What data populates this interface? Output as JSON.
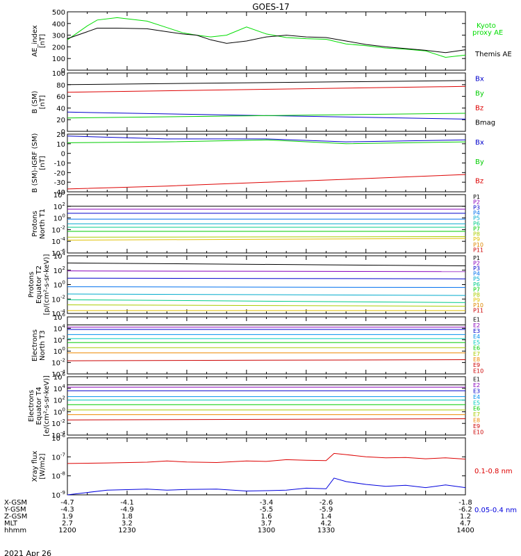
{
  "title": "GOES-17",
  "footer_date": "2021 Apr 26",
  "x_axis": {
    "tick_labels": [
      "1200",
      "1230",
      "1300",
      "1330",
      "1400"
    ],
    "rows": [
      {
        "label": "X-GSM",
        "values": [
          "-4.7",
          "-4.1",
          "-3.4",
          "-2.6",
          "-1.8"
        ]
      },
      {
        "label": "Y-GSM",
        "values": [
          "-4.3",
          "-4.9",
          "-5.5",
          "-5.9",
          "-6.2"
        ]
      },
      {
        "label": "Z-GSM",
        "values": [
          "1.9",
          "1.8",
          "1.6",
          "1.4",
          "1.2"
        ]
      },
      {
        "label": "MLT",
        "values": [
          "2.7",
          "3.2",
          "3.7",
          "4.2",
          "4.7"
        ]
      },
      {
        "label": "hhmm",
        "values": [
          "1200",
          "1230",
          "1300",
          "1330",
          "1400"
        ]
      }
    ]
  },
  "chart_data": [
    {
      "type": "line",
      "ylabel": [
        "AE_index",
        "[nT]"
      ],
      "yscale": "linear",
      "ylim": [
        0,
        500
      ],
      "ticks": [
        0,
        100,
        200,
        300,
        400,
        500
      ],
      "tick_labels": [
        "0",
        "100",
        "200",
        "300",
        "400",
        "500"
      ],
      "x": [
        1200,
        1210,
        1215,
        1225,
        1240,
        1250,
        1258,
        1265,
        1272,
        1280,
        1290,
        1300,
        1310,
        1320,
        1330,
        1340,
        1350,
        1360,
        1370,
        1380,
        1390,
        1400
      ],
      "series": [
        {
          "name": "Kyoto proxy AE",
          "color": "#00dd00",
          "values": [
            260,
            380,
            430,
            450,
            420,
            365,
            320,
            300,
            285,
            300,
            370,
            310,
            280,
            270,
            265,
            225,
            210,
            190,
            180,
            165,
            110,
            130
          ]
        },
        {
          "name": "Themis AE",
          "color": "#000000",
          "values": [
            270,
            330,
            360,
            360,
            355,
            330,
            310,
            300,
            260,
            230,
            250,
            285,
            300,
            285,
            280,
            250,
            220,
            200,
            185,
            170,
            150,
            175
          ]
        }
      ]
    },
    {
      "type": "line",
      "ylabel": [
        "B (SM)",
        "[nT]"
      ],
      "yscale": "linear",
      "ylim": [
        0,
        100
      ],
      "ticks": [
        0,
        20,
        40,
        60,
        80,
        100
      ],
      "tick_labels": [
        "0",
        "20",
        "40",
        "60",
        "80",
        "100"
      ],
      "x": [
        1200,
        1400
      ],
      "series": [
        {
          "name": "Bx",
          "color": "#0000cc",
          "values": [
            33,
            21
          ]
        },
        {
          "name": "By",
          "color": "#00cc00",
          "values": [
            23,
            31
          ]
        },
        {
          "name": "Bz",
          "color": "#dd0000",
          "values": [
            67,
            77
          ]
        },
        {
          "name": "Bmag",
          "color": "#000000",
          "values": [
            80,
            87
          ]
        }
      ]
    },
    {
      "type": "line",
      "ylabel": [
        "B (SM)-IGRF (SM)",
        "[nT]"
      ],
      "yscale": "linear",
      "ylim": [
        -40,
        20
      ],
      "ticks": [
        -40,
        -30,
        -20,
        -10,
        0,
        10,
        20
      ],
      "tick_labels": [
        "-40",
        "-30",
        "-20",
        "-10",
        "0",
        "10",
        "20"
      ],
      "x": [
        1200,
        1250,
        1300,
        1340,
        1400
      ],
      "series": [
        {
          "name": "Bx",
          "color": "#0000cc",
          "values": [
            18,
            15,
            15,
            12,
            14
          ]
        },
        {
          "name": "By",
          "color": "#00cc00",
          "values": [
            11,
            12,
            14,
            10,
            12
          ]
        },
        {
          "name": "Bz",
          "color": "#dd0000",
          "values": [
            -37,
            -34,
            -30,
            -27,
            -22
          ]
        }
      ]
    },
    {
      "type": "line",
      "ylabel": [
        "Protons",
        "North T1"
      ],
      "yscale": "log",
      "ylim": [
        -6,
        4
      ],
      "ticks": [
        -6,
        -4,
        -2,
        0,
        2,
        4
      ],
      "tick_labels": [
        "10-6",
        "10-4",
        "10-2",
        "100",
        "102",
        "104"
      ],
      "x": [
        1200,
        1400
      ],
      "series": [
        {
          "name": "P1",
          "color": "#000000",
          "values": [
            2.0,
            2.0
          ]
        },
        {
          "name": "P2",
          "color": "#8800bb",
          "values": [
            1.5,
            1.5
          ]
        },
        {
          "name": "P3",
          "color": "#0000cc",
          "values": [
            0.8,
            0.8
          ]
        },
        {
          "name": "P4",
          "color": "#0070ee",
          "values": [
            -0.2,
            -0.2
          ]
        },
        {
          "name": "P5",
          "color": "#00aacc",
          "values": [
            -1.0,
            -1.0
          ]
        },
        {
          "name": "P6",
          "color": "#00cc88",
          "values": [
            -1.6,
            -1.6
          ]
        },
        {
          "name": "P7",
          "color": "#00cc00",
          "values": [
            -2.3,
            -2.3
          ]
        },
        {
          "name": "P8",
          "color": "#aacc00",
          "values": [
            -3.3,
            -3.2
          ]
        },
        {
          "name": "P9",
          "color": "#e0c000",
          "values": [
            -3.8,
            -3.5
          ]
        }
      ],
      "legend": [
        {
          "name": "P1",
          "color": "#000000"
        },
        {
          "name": "P2",
          "color": "#8800bb"
        },
        {
          "name": "P3",
          "color": "#0000cc"
        },
        {
          "name": "P4",
          "color": "#0070ee"
        },
        {
          "name": "P5",
          "color": "#00aacc"
        },
        {
          "name": "P6",
          "color": "#00cc88"
        },
        {
          "name": "P7",
          "color": "#00cc00"
        },
        {
          "name": "P8",
          "color": "#aacc00"
        },
        {
          "name": "P9",
          "color": "#e0c000"
        },
        {
          "name": "P10",
          "color": "#dd8800"
        },
        {
          "name": "P11",
          "color": "#cc0000"
        }
      ]
    },
    {
      "type": "line",
      "ylabel": [
        "Protons",
        "Equator T2",
        "[p/(cm²-s-sr-keV)]"
      ],
      "yscale": "log",
      "ylim": [
        -4,
        4
      ],
      "ticks": [
        -4,
        -2,
        0,
        2,
        4
      ],
      "tick_labels": [
        "10-4",
        "10-2",
        "100",
        "102",
        "104"
      ],
      "x": [
        1200,
        1400
      ],
      "series": [
        {
          "name": "P1",
          "color": "#000000",
          "values": [
            3.0,
            2.6
          ]
        },
        {
          "name": "P2",
          "color": "#8800bb",
          "values": [
            1.9,
            1.8
          ]
        },
        {
          "name": "P3",
          "color": "#0000cc",
          "values": [
            0.9,
            0.8
          ]
        },
        {
          "name": "P4",
          "color": "#0070ee",
          "values": [
            -0.3,
            -0.4
          ]
        },
        {
          "name": "P5",
          "color": "#00aacc",
          "values": [
            -1.3,
            -1.5
          ]
        },
        {
          "name": "P6",
          "color": "#00cc88",
          "values": [
            -2.1,
            -2.5
          ]
        },
        {
          "name": "P7",
          "color": "#aacc00",
          "values": [
            -2.8,
            -3.0
          ]
        },
        {
          "name": "P8",
          "color": "#e0c000",
          "values": [
            -3.6,
            -3.6
          ]
        }
      ],
      "legend": [
        {
          "name": "P1",
          "color": "#000000"
        },
        {
          "name": "P2",
          "color": "#8800bb"
        },
        {
          "name": "P3",
          "color": "#0000cc"
        },
        {
          "name": "P4",
          "color": "#0070ee"
        },
        {
          "name": "P5",
          "color": "#00aacc"
        },
        {
          "name": "P6",
          "color": "#00cc88"
        },
        {
          "name": "P7",
          "color": "#00cc00"
        },
        {
          "name": "P8",
          "color": "#aacc00"
        },
        {
          "name": "P9",
          "color": "#e0c000"
        },
        {
          "name": "P10",
          "color": "#dd8800"
        },
        {
          "name": "P11",
          "color": "#cc0000"
        }
      ]
    },
    {
      "type": "line",
      "ylabel": [
        "Electrons",
        "North T3"
      ],
      "yscale": "log",
      "ylim": [
        -4,
        6
      ],
      "ticks": [
        -4,
        -2,
        0,
        2,
        4,
        6
      ],
      "tick_labels": [
        "10-4",
        "10-2",
        "100",
        "102",
        "104",
        "106"
      ],
      "x": [
        1200,
        1400
      ],
      "series": [
        {
          "name": "E1",
          "color": "#000000",
          "values": [
            4.6,
            4.6
          ]
        },
        {
          "name": "E2",
          "color": "#8800bb",
          "values": [
            4.2,
            4.2
          ]
        },
        {
          "name": "E3",
          "color": "#0000cc",
          "values": [
            3.8,
            3.8
          ]
        },
        {
          "name": "E4",
          "color": "#0090ee",
          "values": [
            2.9,
            2.9
          ]
        },
        {
          "name": "E5",
          "color": "#00ccbb",
          "values": [
            2.2,
            2.2
          ]
        },
        {
          "name": "E6",
          "color": "#00cc00",
          "values": [
            1.5,
            1.5
          ]
        },
        {
          "name": "E7",
          "color": "#aacc00",
          "values": [
            0.6,
            0.6
          ]
        },
        {
          "name": "E8",
          "color": "#ee8800",
          "values": [
            -0.3,
            -0.3
          ]
        },
        {
          "name": "E9",
          "color": "#cc0000",
          "values": [
            -1.7,
            -1.5
          ]
        }
      ],
      "legend": [
        {
          "name": "E1",
          "color": "#000000"
        },
        {
          "name": "E2",
          "color": "#8800bb"
        },
        {
          "name": "E3",
          "color": "#0000cc"
        },
        {
          "name": "E4",
          "color": "#0090ee"
        },
        {
          "name": "E5",
          "color": "#00ccbb"
        },
        {
          "name": "E6",
          "color": "#00cc00"
        },
        {
          "name": "E7",
          "color": "#aacc00"
        },
        {
          "name": "E8",
          "color": "#ee8800"
        },
        {
          "name": "E9",
          "color": "#cc0000"
        },
        {
          "name": "E10",
          "color": "#cc0000"
        }
      ]
    },
    {
      "type": "line",
      "ylabel": [
        "Electrons",
        "Equator T4",
        "[e/(cm²-s-sr-keV)]"
      ],
      "yscale": "log",
      "ylim": [
        -4,
        6
      ],
      "ticks": [
        -4,
        -2,
        0,
        2,
        4,
        6
      ],
      "tick_labels": [
        "10-4",
        "10-2",
        "100",
        "102",
        "104",
        "106"
      ],
      "x": [
        1200,
        1400
      ],
      "series": [
        {
          "name": "E1",
          "color": "#000000",
          "values": [
            4.6,
            4.6
          ]
        },
        {
          "name": "E2",
          "color": "#8800bb",
          "values": [
            4.2,
            4.2
          ]
        },
        {
          "name": "E3",
          "color": "#0000cc",
          "values": [
            3.6,
            3.6
          ]
        },
        {
          "name": "E4",
          "color": "#0090ee",
          "values": [
            2.6,
            2.6
          ]
        },
        {
          "name": "E5",
          "color": "#00ccbb",
          "values": [
            2.0,
            2.0
          ]
        },
        {
          "name": "E6",
          "color": "#00cc00",
          "values": [
            1.2,
            1.2
          ]
        },
        {
          "name": "E7",
          "color": "#aacc00",
          "values": [
            0.3,
            0.3
          ]
        },
        {
          "name": "E8",
          "color": "#ee8800",
          "values": [
            -0.5,
            -0.5
          ]
        },
        {
          "name": "E9",
          "color": "#cc0000",
          "values": [
            -1.4,
            -1.2
          ]
        }
      ],
      "legend": [
        {
          "name": "E1",
          "color": "#000000"
        },
        {
          "name": "E2",
          "color": "#8800bb"
        },
        {
          "name": "E3",
          "color": "#0000cc"
        },
        {
          "name": "E4",
          "color": "#0090ee"
        },
        {
          "name": "E5",
          "color": "#00ccbb"
        },
        {
          "name": "E6",
          "color": "#00cc00"
        },
        {
          "name": "E7",
          "color": "#aacc00"
        },
        {
          "name": "E8",
          "color": "#ee8800"
        },
        {
          "name": "E9",
          "color": "#cc0000"
        },
        {
          "name": "E10",
          "color": "#cc0000"
        }
      ]
    },
    {
      "type": "line",
      "ylabel": [
        "Xray flux",
        "[W/m2]"
      ],
      "yscale": "log",
      "ylim": [
        -9,
        -6
      ],
      "ticks": [
        -9,
        -8,
        -7,
        -6
      ],
      "tick_labels": [
        "10-9",
        "10-8",
        "10-7",
        "10-6"
      ],
      "x": [
        1200,
        1220,
        1240,
        1250,
        1260,
        1275,
        1290,
        1300,
        1310,
        1320,
        1330,
        1334,
        1340,
        1350,
        1360,
        1370,
        1380,
        1390,
        1400
      ],
      "series": [
        {
          "name": "0.1-0.8 nm",
          "color": "#dd0000",
          "values": [
            -7.35,
            -7.32,
            -7.28,
            -7.22,
            -7.27,
            -7.3,
            -7.22,
            -7.24,
            -7.15,
            -7.18,
            -7.2,
            -6.82,
            -6.88,
            -7.0,
            -7.05,
            -7.03,
            -7.1,
            -7.05,
            -7.12
          ]
        },
        {
          "name": "0.05-0.4 nm",
          "color": "#0000dd",
          "values": [
            -9.0,
            -8.75,
            -8.7,
            -8.75,
            -8.72,
            -8.7,
            -8.8,
            -8.78,
            -8.75,
            -8.65,
            -8.68,
            -8.12,
            -8.3,
            -8.45,
            -8.55,
            -8.5,
            -8.62,
            -8.48,
            -8.62
          ]
        }
      ]
    }
  ]
}
